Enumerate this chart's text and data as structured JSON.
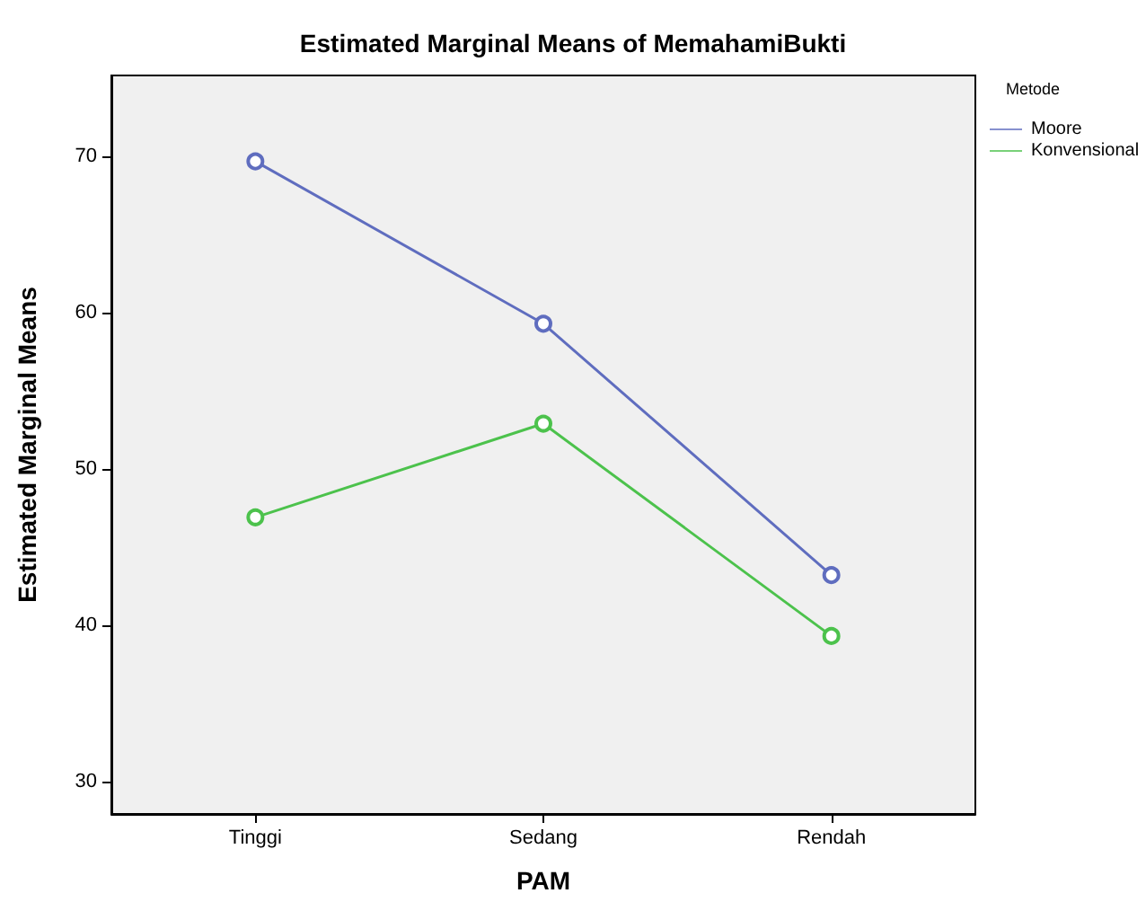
{
  "chart_data": {
    "type": "line",
    "title": "Estimated Marginal Means of MemahamiBukti",
    "xlabel": "PAM",
    "ylabel": "Estimated Marginal Means",
    "legend_title": "Metode",
    "categories": [
      "Tinggi",
      "Sedang",
      "Rendah"
    ],
    "series": [
      {
        "name": "Moore",
        "color": "#5f6dbf",
        "values": [
          69.7,
          59.3,
          43.2
        ]
      },
      {
        "name": "Konvensional",
        "color": "#4cc24c",
        "values": [
          46.9,
          52.9,
          39.3
        ]
      }
    ],
    "ylim": [
      27.9,
      75.2
    ],
    "yticks": [
      30,
      40,
      50,
      60,
      70
    ],
    "grid": false,
    "legend": "top right",
    "marker": "circle",
    "line_style": "solid"
  }
}
